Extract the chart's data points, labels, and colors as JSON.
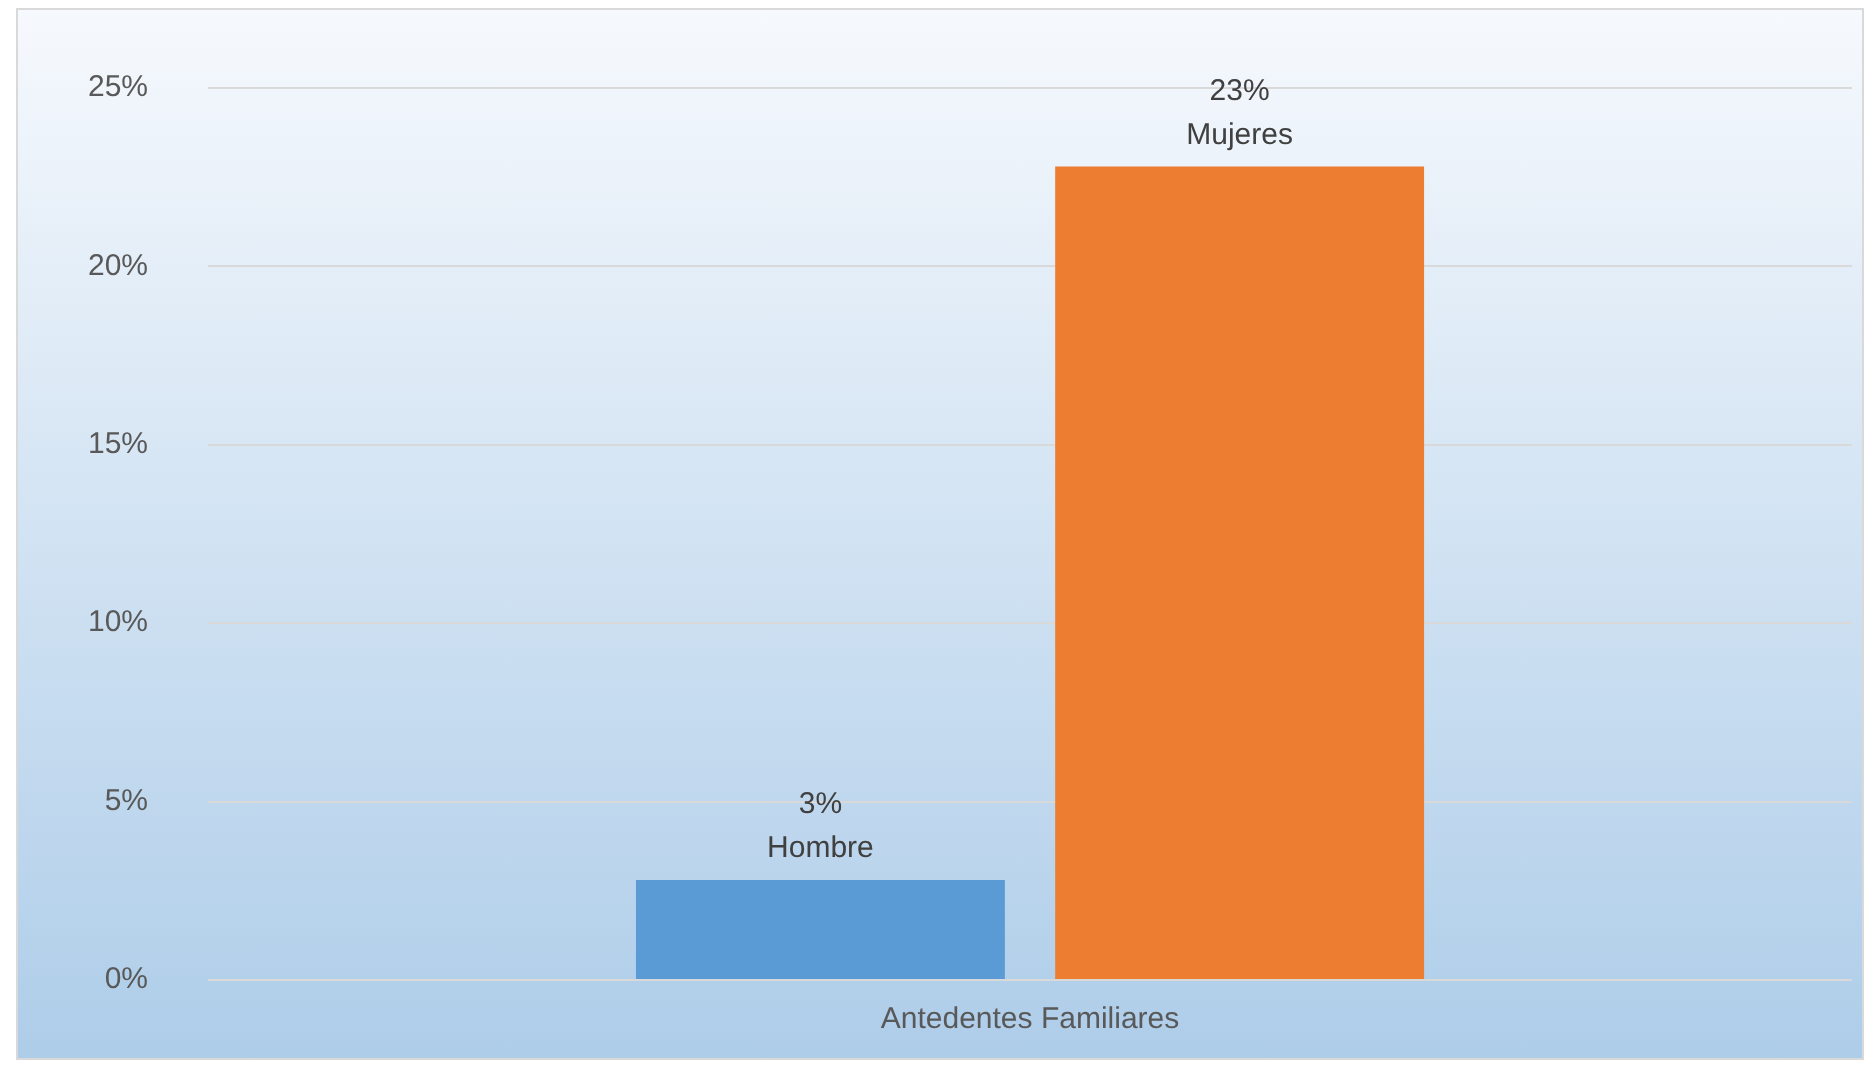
{
  "chart_data": {
    "type": "bar",
    "categories": [
      "Antedentes Familiares"
    ],
    "series": [
      {
        "name": "Hombre",
        "color": "#5b9bd5",
        "values": [
          2.8
        ],
        "value_labels": [
          "3%"
        ]
      },
      {
        "name": "Mujeres",
        "color": "#ed7d31",
        "values": [
          22.8
        ],
        "value_labels": [
          "23%"
        ]
      }
    ],
    "ylim": [
      0,
      25
    ],
    "yticks": [
      {
        "value": 0,
        "label": "0%"
      },
      {
        "value": 5,
        "label": "5%"
      },
      {
        "value": 10,
        "label": "10%"
      },
      {
        "value": 15,
        "label": "15%"
      },
      {
        "value": 20,
        "label": "20%"
      },
      {
        "value": 25,
        "label": "25%"
      }
    ],
    "grid": "y",
    "legend": false
  }
}
